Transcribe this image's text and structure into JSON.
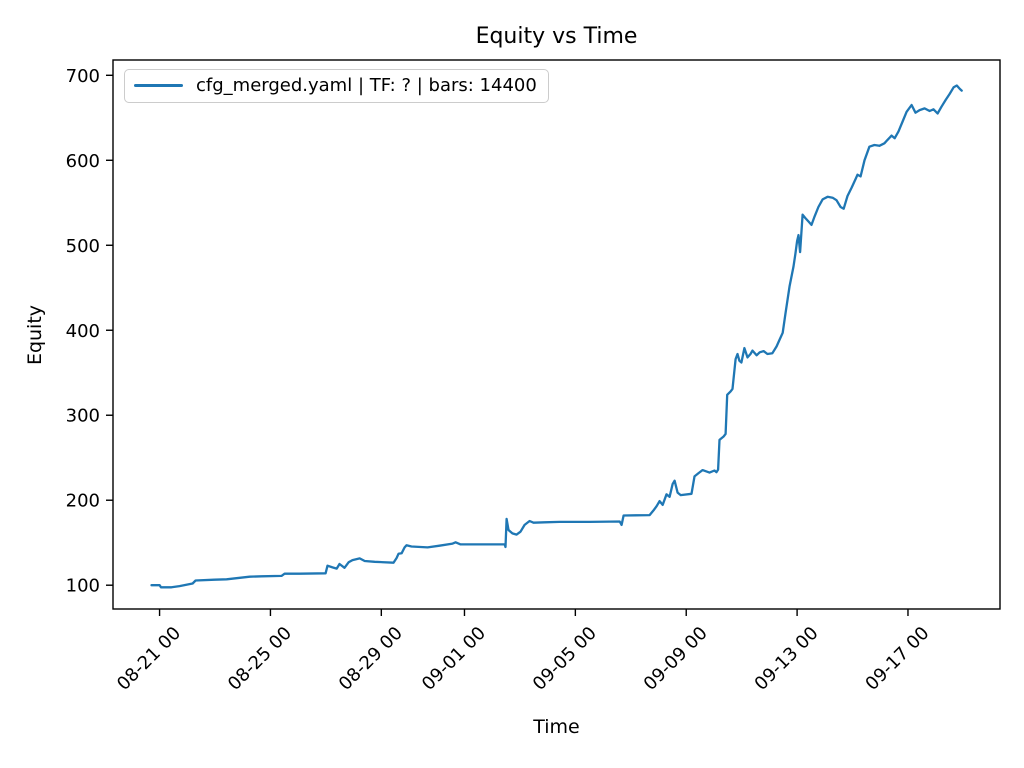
{
  "chart_data": {
    "type": "line",
    "title": "Equity vs Time",
    "xlabel": "Time",
    "ylabel": "Equity",
    "grid": false,
    "background": "#ffffff",
    "axis_color": "#000000",
    "legend": {
      "position": "upper left",
      "entries": [
        "cfg_merged.yaml | TF: ? | bars: 14400"
      ]
    },
    "x_unit": "days since 08-21 00:00",
    "xlim": [
      -1.68,
      30.32
    ],
    "ylim": [
      72,
      718
    ],
    "y_ticks": [
      100,
      200,
      300,
      400,
      500,
      600,
      700
    ],
    "x_ticks": [
      {
        "t": 0,
        "label": "08-21 00"
      },
      {
        "t": 4,
        "label": "08-25 00"
      },
      {
        "t": 8,
        "label": "08-29 00"
      },
      {
        "t": 11,
        "label": "09-01 00"
      },
      {
        "t": 15,
        "label": "09-05 00"
      },
      {
        "t": 19,
        "label": "09-09 00"
      },
      {
        "t": 23,
        "label": "09-13 00"
      },
      {
        "t": 27,
        "label": "09-17 00"
      }
    ],
    "series": [
      {
        "name": "cfg_merged.yaml | TF: ? | bars: 14400",
        "color": "#1f77b4",
        "points": [
          [
            -0.29,
            100
          ],
          [
            0,
            100
          ],
          [
            0.05,
            97.5
          ],
          [
            0.43,
            97.5
          ],
          [
            0.72,
            99
          ],
          [
            1.19,
            102
          ],
          [
            1.3,
            105.5
          ],
          [
            1.98,
            106.5
          ],
          [
            2.42,
            107
          ],
          [
            3.25,
            110
          ],
          [
            3.68,
            110.5
          ],
          [
            4.4,
            111
          ],
          [
            4.51,
            113.5
          ],
          [
            5.05,
            113.5
          ],
          [
            5.99,
            114
          ],
          [
            6.06,
            123
          ],
          [
            6.24,
            121
          ],
          [
            6.39,
            119.5
          ],
          [
            6.49,
            125
          ],
          [
            6.67,
            120.5
          ],
          [
            6.82,
            127
          ],
          [
            6.96,
            129.5
          ],
          [
            7.22,
            131.5
          ],
          [
            7.4,
            128.5
          ],
          [
            7.76,
            127.5
          ],
          [
            8.44,
            126.5
          ],
          [
            8.55,
            132
          ],
          [
            8.62,
            137
          ],
          [
            8.73,
            137.5
          ],
          [
            8.84,
            144.5
          ],
          [
            8.91,
            147
          ],
          [
            9.09,
            145.5
          ],
          [
            9.67,
            144.5
          ],
          [
            10.1,
            146.5
          ],
          [
            10.57,
            149
          ],
          [
            10.68,
            150.5
          ],
          [
            10.86,
            148
          ],
          [
            12.45,
            148
          ],
          [
            12.48,
            145
          ],
          [
            12.52,
            178
          ],
          [
            12.59,
            165
          ],
          [
            12.73,
            161
          ],
          [
            12.88,
            159.5
          ],
          [
            13.02,
            163
          ],
          [
            13.17,
            171
          ],
          [
            13.35,
            175.5
          ],
          [
            13.49,
            173.5
          ],
          [
            13.89,
            174
          ],
          [
            14.43,
            174.5
          ],
          [
            15.51,
            174.5
          ],
          [
            16.6,
            175
          ],
          [
            16.67,
            171
          ],
          [
            16.74,
            182
          ],
          [
            17.68,
            182.5
          ],
          [
            17.82,
            188
          ],
          [
            17.93,
            193
          ],
          [
            18.04,
            199
          ],
          [
            18.15,
            194.5
          ],
          [
            18.29,
            207
          ],
          [
            18.4,
            204
          ],
          [
            18.51,
            219
          ],
          [
            18.58,
            223
          ],
          [
            18.69,
            209
          ],
          [
            18.8,
            206
          ],
          [
            19.19,
            207.5
          ],
          [
            19.3,
            228
          ],
          [
            19.45,
            232
          ],
          [
            19.59,
            235.5
          ],
          [
            19.84,
            232.5
          ],
          [
            20.02,
            235
          ],
          [
            20.09,
            233
          ],
          [
            20.15,
            236
          ],
          [
            20.2,
            271
          ],
          [
            20.35,
            275
          ],
          [
            20.42,
            278
          ],
          [
            20.48,
            324
          ],
          [
            20.6,
            328
          ],
          [
            20.67,
            331
          ],
          [
            20.78,
            366
          ],
          [
            20.85,
            372
          ],
          [
            20.92,
            364
          ],
          [
            20.99,
            362
          ],
          [
            21.1,
            379
          ],
          [
            21.21,
            368
          ],
          [
            21.32,
            372
          ],
          [
            21.39,
            376
          ],
          [
            21.54,
            370.5
          ],
          [
            21.65,
            374
          ],
          [
            21.79,
            375.5
          ],
          [
            21.93,
            372
          ],
          [
            22.11,
            373
          ],
          [
            22.26,
            381
          ],
          [
            22.37,
            389
          ],
          [
            22.48,
            397
          ],
          [
            22.58,
            420
          ],
          [
            22.73,
            452
          ],
          [
            22.87,
            475
          ],
          [
            22.94,
            490
          ],
          [
            23,
            505
          ],
          [
            23.05,
            512
          ],
          [
            23.11,
            492
          ],
          [
            23.2,
            536
          ],
          [
            23.3,
            532
          ],
          [
            23.41,
            528
          ],
          [
            23.52,
            524
          ],
          [
            23.63,
            534
          ],
          [
            23.77,
            545
          ],
          [
            23.92,
            554
          ],
          [
            24.1,
            557
          ],
          [
            24.28,
            556
          ],
          [
            24.42,
            553
          ],
          [
            24.57,
            545
          ],
          [
            24.68,
            543
          ],
          [
            24.82,
            558
          ],
          [
            24.97,
            568
          ],
          [
            25.11,
            578
          ],
          [
            25.18,
            583
          ],
          [
            25.29,
            581
          ],
          [
            25.43,
            600
          ],
          [
            25.61,
            616
          ],
          [
            25.79,
            618
          ],
          [
            25.97,
            617
          ],
          [
            26.15,
            620
          ],
          [
            26.26,
            624
          ],
          [
            26.41,
            629
          ],
          [
            26.52,
            626
          ],
          [
            26.66,
            634
          ],
          [
            26.8,
            645
          ],
          [
            26.95,
            657
          ],
          [
            27.13,
            665
          ],
          [
            27.27,
            656
          ],
          [
            27.42,
            659
          ],
          [
            27.6,
            661
          ],
          [
            27.78,
            658
          ],
          [
            27.92,
            660
          ],
          [
            28.07,
            655
          ],
          [
            28.21,
            663
          ],
          [
            28.36,
            671
          ],
          [
            28.5,
            678
          ],
          [
            28.65,
            686
          ],
          [
            28.76,
            688
          ],
          [
            28.87,
            684
          ],
          [
            28.94,
            682
          ]
        ]
      }
    ]
  }
}
